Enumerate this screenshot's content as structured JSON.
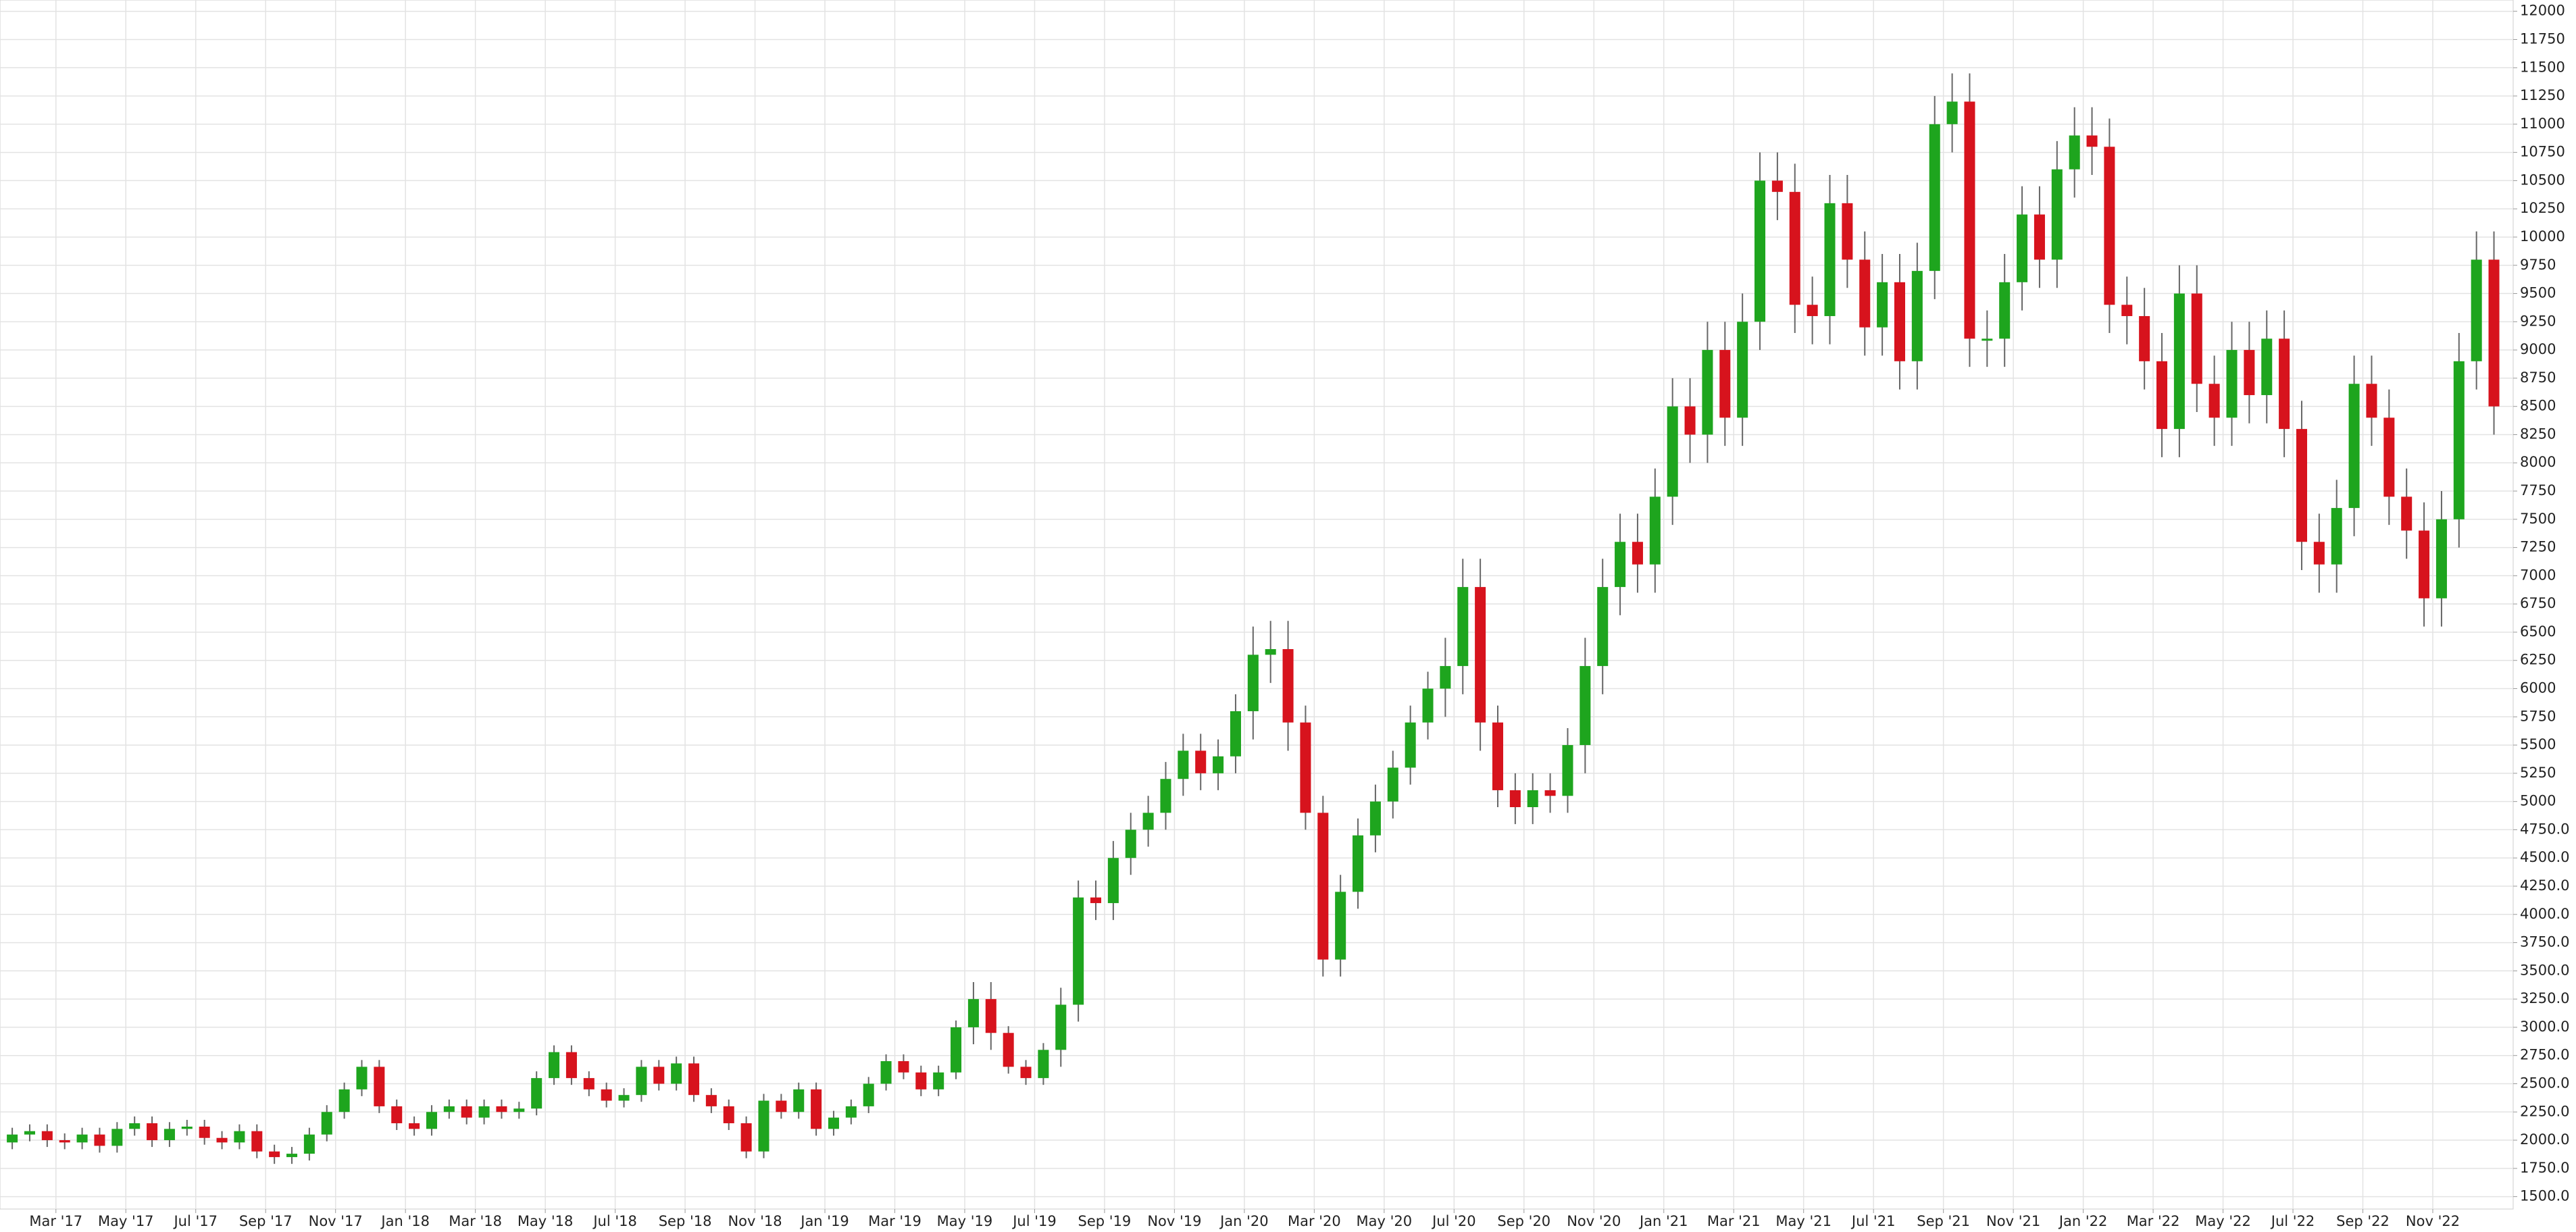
{
  "chart_data": {
    "type": "candlestick",
    "x": [
      0.75,
      1.25,
      1.75,
      2.25,
      2.75,
      3.25,
      3.75,
      4.25,
      4.75,
      5.25,
      5.75,
      6.25,
      6.75,
      7.25,
      7.75,
      8.25,
      8.75,
      9.25,
      9.75,
      10.25,
      10.75,
      11.25,
      11.75,
      12.25,
      12.75,
      13.25,
      13.75,
      14.25,
      14.75,
      15.25,
      15.75,
      16.25,
      16.75,
      17.25,
      17.75,
      18.25,
      18.75,
      19.25,
      19.75,
      20.25,
      20.75,
      21.25,
      21.75,
      22.25,
      22.75,
      23.25,
      23.75,
      24.25,
      24.75,
      25.25,
      25.75,
      26.25,
      26.75,
      27.25,
      27.75,
      28.25,
      28.75,
      29.25,
      29.75,
      30.25,
      30.75,
      31.25,
      31.75,
      32.25,
      32.75,
      33.25,
      33.75,
      34.25,
      34.75,
      35.25,
      35.75,
      36.25,
      36.75,
      37.25,
      37.75,
      38.25,
      38.75,
      39.25,
      39.75,
      40.25,
      40.75,
      41.25,
      41.75,
      42.25,
      42.75,
      43.25,
      43.75,
      44.25,
      44.75,
      45.25,
      45.75,
      46.25,
      46.75,
      47.25,
      47.75,
      48.25,
      48.75,
      49.25,
      49.75,
      50.25,
      50.75,
      51.25,
      51.75,
      52.25,
      52.75,
      53.25,
      53.75,
      54.25,
      54.75,
      55.25,
      55.75,
      56.25,
      56.75,
      57.25,
      57.75,
      58.25,
      58.75,
      59.25,
      59.75,
      60.25,
      60.75,
      61.25,
      61.75,
      62.25,
      62.75,
      63.25,
      63.75,
      64.25,
      64.75,
      65.25,
      65.75,
      66.25,
      66.75,
      67.25,
      67.75,
      68.25,
      68.75,
      69.25,
      69.75,
      70.25,
      70.75,
      71.25,
      71.75
    ],
    "open": [
      1980,
      2050,
      2080,
      2000,
      1980,
      2050,
      1950,
      2100,
      2150,
      2000,
      2100,
      2120,
      2020,
      1980,
      2080,
      1900,
      1850,
      1880,
      2050,
      2250,
      2450,
      2650,
      2300,
      2150,
      2100,
      2250,
      2300,
      2200,
      2300,
      2250,
      2280,
      2550,
      2780,
      2550,
      2450,
      2350,
      2400,
      2650,
      2500,
      2680,
      2400,
      2300,
      2150,
      1900,
      2350,
      2250,
      2450,
      2100,
      2200,
      2300,
      2500,
      2700,
      2600,
      2450,
      2600,
      3000,
      3250,
      2950,
      2650,
      2550,
      2800,
      3200,
      4150,
      4100,
      4500,
      4750,
      4900,
      5200,
      5450,
      5250,
      5400,
      5800,
      6300,
      6350,
      5700,
      4900,
      3600,
      4200,
      4700,
      5000,
      5300,
      5700,
      6000,
      6200,
      6900,
      5700,
      5100,
      4950,
      5100,
      5050,
      5500,
      6200,
      6900,
      7300,
      7100,
      7700,
      8500,
      8250,
      9000,
      8400,
      9250,
      10500,
      10400,
      9400,
      9300,
      10300,
      9800,
      9200,
      9600,
      8900,
      9700,
      11000,
      11200,
      9100,
      9100,
      9600,
      10200,
      9800,
      10600,
      10900,
      10800,
      9400,
      9300,
      8900,
      8300,
      9500,
      8700,
      8400,
      9000,
      8600,
      9100,
      8300,
      7300,
      7100,
      7600,
      8700,
      8400,
      7700,
      7400,
      6800,
      7500,
      8900,
      9800
    ],
    "high": [
      2110,
      2140,
      2140,
      2060,
      2110,
      2110,
      2160,
      2210,
      2210,
      2160,
      2180,
      2180,
      2080,
      2140,
      2140,
      1960,
      1940,
      2110,
      2310,
      2510,
      2710,
      2710,
      2360,
      2210,
      2310,
      2360,
      2360,
      2360,
      2360,
      2340,
      2610,
      2840,
      2840,
      2610,
      2510,
      2460,
      2710,
      2710,
      2740,
      2740,
      2460,
      2360,
      2210,
      2410,
      2410,
      2510,
      2510,
      2260,
      2360,
      2560,
      2760,
      2760,
      2660,
      2660,
      3060,
      3400,
      3400,
      3010,
      2710,
      2860,
      3350,
      4300,
      4300,
      4650,
      4900,
      5050,
      5350,
      5600,
      5600,
      5550,
      5950,
      6550,
      6600,
      6600,
      5850,
      5050,
      4350,
      4850,
      5150,
      5450,
      5850,
      6150,
      6450,
      7150,
      7150,
      5850,
      5250,
      5250,
      5250,
      5650,
      6450,
      7150,
      7550,
      7550,
      7950,
      8750,
      8750,
      9250,
      9250,
      9500,
      10750,
      10750,
      10650,
      9650,
      10550,
      10550,
      10050,
      9850,
      9850,
      9950,
      11250,
      11450,
      11450,
      9350,
      9850,
      10450,
      10450,
      10850,
      11150,
      11150,
      11050,
      9650,
      9550,
      9150,
      9750,
      9750,
      8950,
      9250,
      9250,
      9350,
      9350,
      8550,
      7550,
      7850,
      8950,
      8950,
      8650,
      7950,
      7650,
      7750,
      9150,
      10050,
      10050
    ],
    "low": [
      1920,
      1990,
      1940,
      1920,
      1920,
      1890,
      1890,
      2040,
      1940,
      1940,
      2040,
      1960,
      1920,
      1920,
      1840,
      1790,
      1790,
      1820,
      1990,
      2190,
      2390,
      2240,
      2090,
      2040,
      2040,
      2190,
      2140,
      2140,
      2190,
      2190,
      2220,
      2490,
      2490,
      2390,
      2290,
      2290,
      2340,
      2440,
      2440,
      2340,
      2240,
      2090,
      1840,
      1840,
      2190,
      2190,
      2040,
      2040,
      2140,
      2240,
      2440,
      2540,
      2390,
      2390,
      2540,
      2850,
      2800,
      2590,
      2490,
      2490,
      2650,
      3050,
      3950,
      3950,
      4350,
      4600,
      4750,
      5050,
      5100,
      5100,
      5250,
      5550,
      6050,
      5450,
      4750,
      3450,
      3450,
      4050,
      4550,
      4850,
      5150,
      5550,
      5750,
      5950,
      5450,
      4950,
      4800,
      4800,
      4900,
      4900,
      5250,
      5950,
      6650,
      6850,
      6850,
      7450,
      8000,
      8000,
      8150,
      8150,
      9000,
      10150,
      9150,
      9050,
      9050,
      9550,
      8950,
      8950,
      8650,
      8650,
      9450,
      10750,
      8850,
      8850,
      8850,
      9350,
      9550,
      9550,
      10350,
      10550,
      9150,
      9050,
      8650,
      8050,
      8050,
      8450,
      8150,
      8150,
      8350,
      8350,
      8050,
      7050,
      6850,
      6850,
      7350,
      8150,
      7450,
      7150,
      6550,
      6550,
      7250,
      8650,
      8250
    ],
    "close": [
      2050,
      2080,
      2000,
      1980,
      2050,
      1950,
      2100,
      2150,
      2000,
      2100,
      2120,
      2020,
      1980,
      2080,
      1900,
      1850,
      1880,
      2050,
      2250,
      2450,
      2650,
      2300,
      2150,
      2100,
      2250,
      2300,
      2200,
      2300,
      2250,
      2280,
      2550,
      2780,
      2550,
      2450,
      2350,
      2400,
      2650,
      2500,
      2680,
      2400,
      2300,
      2150,
      1900,
      2350,
      2250,
      2450,
      2100,
      2200,
      2300,
      2500,
      2700,
      2600,
      2450,
      2600,
      3000,
      3250,
      2950,
      2650,
      2550,
      2800,
      3200,
      4150,
      4100,
      4500,
      4750,
      4900,
      5200,
      5450,
      5250,
      5400,
      5800,
      6300,
      6350,
      5700,
      4900,
      3600,
      4200,
      4700,
      5000,
      5300,
      5700,
      6000,
      6200,
      6900,
      5700,
      5100,
      4950,
      5100,
      5050,
      5500,
      6200,
      6900,
      7300,
      7100,
      7700,
      8500,
      8250,
      9000,
      8400,
      9250,
      10500,
      10400,
      9400,
      9300,
      10300,
      9800,
      9200,
      9600,
      8900,
      9700,
      11000,
      11200,
      9100,
      9100,
      9600,
      10200,
      9800,
      10600,
      10900,
      10800,
      9400,
      9300,
      8900,
      8300,
      9500,
      8700,
      8400,
      9000,
      8600,
      9100,
      8300,
      7300,
      7100,
      7600,
      8700,
      8400,
      7700,
      7400,
      6800,
      7500,
      8900,
      9800,
      8500
    ],
    "up_color": "#1ea51e",
    "down_color": "#d7131d",
    "xlim": [
      0.4,
      72.3
    ],
    "xticks": [
      {
        "value": 2,
        "label": "Mar '17"
      },
      {
        "value": 4,
        "label": "May '17"
      },
      {
        "value": 6,
        "label": "Jul '17"
      },
      {
        "value": 8,
        "label": "Sep '17"
      },
      {
        "value": 10,
        "label": "Nov '17"
      },
      {
        "value": 12,
        "label": "Jan '18"
      },
      {
        "value": 14,
        "label": "Mar '18"
      },
      {
        "value": 16,
        "label": "May '18"
      },
      {
        "value": 18,
        "label": "Jul '18"
      },
      {
        "value": 20,
        "label": "Sep '18"
      },
      {
        "value": 22,
        "label": "Nov '18"
      },
      {
        "value": 24,
        "label": "Jan '19"
      },
      {
        "value": 26,
        "label": "Mar '19"
      },
      {
        "value": 28,
        "label": "May '19"
      },
      {
        "value": 30,
        "label": "Jul '19"
      },
      {
        "value": 32,
        "label": "Sep '19"
      },
      {
        "value": 34,
        "label": "Nov '19"
      },
      {
        "value": 36,
        "label": "Jan '20"
      },
      {
        "value": 38,
        "label": "Mar '20"
      },
      {
        "value": 40,
        "label": "May '20"
      },
      {
        "value": 42,
        "label": "Jul '20"
      },
      {
        "value": 44,
        "label": "Sep '20"
      },
      {
        "value": 46,
        "label": "Nov '20"
      },
      {
        "value": 48,
        "label": "Jan '21"
      },
      {
        "value": 50,
        "label": "Mar '21"
      },
      {
        "value": 52,
        "label": "May '21"
      },
      {
        "value": 54,
        "label": "Jul '21"
      },
      {
        "value": 56,
        "label": "Sep '21"
      },
      {
        "value": 58,
        "label": "Nov '21"
      },
      {
        "value": 60,
        "label": "Jan '22"
      },
      {
        "value": 62,
        "label": "Mar '22"
      },
      {
        "value": 64,
        "label": "May '22"
      },
      {
        "value": 66,
        "label": "Jul '22"
      },
      {
        "value": 68,
        "label": "Sep '22"
      },
      {
        "value": 70,
        "label": "Nov '22"
      }
    ],
    "ylim": [
      1390,
      12100
    ],
    "yticks": [
      {
        "value": 1500,
        "label": "1500.0"
      },
      {
        "value": 1750,
        "label": "1750.0"
      },
      {
        "value": 2000,
        "label": "2000.0"
      },
      {
        "value": 2250,
        "label": "2250.0"
      },
      {
        "value": 2500,
        "label": "2500.0"
      },
      {
        "value": 2750,
        "label": "2750.0"
      },
      {
        "value": 3000,
        "label": "3000.0"
      },
      {
        "value": 3250,
        "label": "3250.0"
      },
      {
        "value": 3500,
        "label": "3500.0"
      },
      {
        "value": 3750,
        "label": "3750.0"
      },
      {
        "value": 4000,
        "label": "4000.0"
      },
      {
        "value": 4250,
        "label": "4250.0"
      },
      {
        "value": 4500,
        "label": "4500.0"
      },
      {
        "value": 4750,
        "label": "4750.0"
      },
      5000,
      5250,
      5500,
      5750,
      6000,
      6250,
      6500,
      6750,
      7000,
      7250,
      7500,
      7750,
      8000,
      8250,
      8500,
      8750,
      9000,
      9250,
      9500,
      9750,
      10000,
      10250,
      10500,
      10750,
      11000,
      11250,
      11500,
      11750,
      12000
    ],
    "grid": true
  }
}
